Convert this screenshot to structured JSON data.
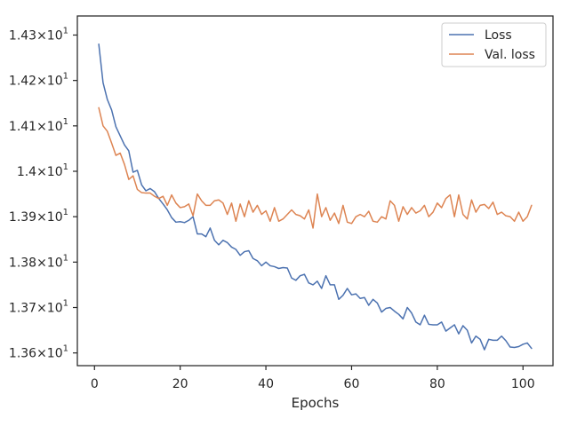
{
  "chart_data": {
    "type": "line",
    "title": "",
    "xlabel": "Epochs",
    "ylabel": "",
    "xlim": [
      -4,
      107
    ],
    "ylim": [
      13.572,
      14.342
    ],
    "xticks": [
      0,
      20,
      40,
      60,
      80,
      100
    ],
    "xtick_labels": [
      "0",
      "20",
      "40",
      "60",
      "80",
      "100"
    ],
    "yticks": [
      13.6,
      13.7,
      13.8,
      13.9,
      14.0,
      14.1,
      14.2,
      14.3
    ],
    "ytick_labels": [
      {
        "base": "1.36",
        "exp": "1"
      },
      {
        "base": "1.37",
        "exp": "1"
      },
      {
        "base": "1.38",
        "exp": "1"
      },
      {
        "base": "1.39",
        "exp": "1"
      },
      {
        "base": "1.4",
        "exp": "1"
      },
      {
        "base": "1.41",
        "exp": "1"
      },
      {
        "base": "1.42",
        "exp": "1"
      },
      {
        "base": "1.43",
        "exp": "1"
      }
    ],
    "grid": false,
    "legend_position": "top-right",
    "series": [
      {
        "name": "Loss",
        "color": "#4c72b0",
        "x_start": 1,
        "values": [
          14.28,
          14.195,
          14.158,
          14.135,
          14.098,
          14.078,
          14.058,
          14.045,
          13.998,
          14.002,
          13.97,
          13.957,
          13.962,
          13.955,
          13.94,
          13.928,
          13.915,
          13.898,
          13.888,
          13.889,
          13.887,
          13.892,
          13.9,
          13.862,
          13.862,
          13.856,
          13.875,
          13.848,
          13.838,
          13.848,
          13.843,
          13.833,
          13.828,
          13.815,
          13.823,
          13.825,
          13.808,
          13.803,
          13.792,
          13.8,
          13.792,
          13.79,
          13.786,
          13.788,
          13.787,
          13.765,
          13.76,
          13.77,
          13.773,
          13.754,
          13.75,
          13.758,
          13.742,
          13.77,
          13.75,
          13.75,
          13.718,
          13.727,
          13.742,
          13.728,
          13.73,
          13.72,
          13.722,
          13.705,
          13.718,
          13.71,
          13.69,
          13.698,
          13.7,
          13.692,
          13.685,
          13.675,
          13.7,
          13.688,
          13.668,
          13.662,
          13.683,
          13.663,
          13.662,
          13.662,
          13.668,
          13.648,
          13.655,
          13.662,
          13.642,
          13.66,
          13.65,
          13.622,
          13.637,
          13.63,
          13.607,
          13.63,
          13.628,
          13.628,
          13.637,
          13.627,
          13.613,
          13.612,
          13.614,
          13.619,
          13.622,
          13.61
        ]
      },
      {
        "name": "Val. loss",
        "color": "#dd8452",
        "x_start": 1,
        "values": [
          14.14,
          14.1,
          14.088,
          14.062,
          14.035,
          14.04,
          14.015,
          13.982,
          13.99,
          13.96,
          13.953,
          13.952,
          13.952,
          13.945,
          13.94,
          13.945,
          13.925,
          13.948,
          13.93,
          13.92,
          13.922,
          13.928,
          13.902,
          13.95,
          13.935,
          13.925,
          13.925,
          13.935,
          13.937,
          13.93,
          13.905,
          13.93,
          13.89,
          13.928,
          13.9,
          13.935,
          13.91,
          13.925,
          13.905,
          13.913,
          13.89,
          13.92,
          13.89,
          13.895,
          13.905,
          13.915,
          13.905,
          13.902,
          13.895,
          13.915,
          13.875,
          13.95,
          13.9,
          13.92,
          13.892,
          13.908,
          13.885,
          13.925,
          13.888,
          13.885,
          13.9,
          13.905,
          13.9,
          13.912,
          13.89,
          13.888,
          13.9,
          13.895,
          13.935,
          13.925,
          13.89,
          13.922,
          13.905,
          13.92,
          13.908,
          13.913,
          13.925,
          13.9,
          13.91,
          13.93,
          13.92,
          13.94,
          13.948,
          13.9,
          13.948,
          13.905,
          13.895,
          13.937,
          13.91,
          13.925,
          13.927,
          13.918,
          13.932,
          13.905,
          13.91,
          13.902,
          13.9,
          13.89,
          13.91,
          13.89,
          13.9,
          13.925
        ]
      }
    ]
  }
}
